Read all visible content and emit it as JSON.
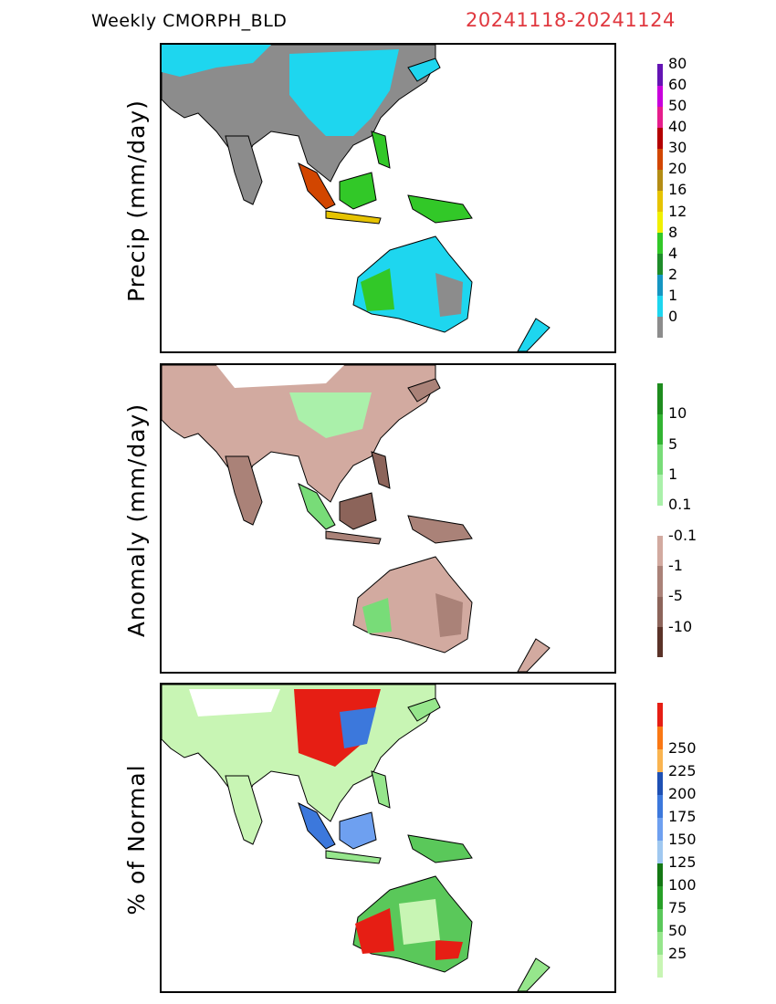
{
  "header": {
    "title": "Weekly  CMORPH_BLD",
    "date_range": "20241118-20241124"
  },
  "panels": [
    {
      "ylabel": "Precip  (mm/day)",
      "colorbar": {
        "colors": [
          "#8c8c8c",
          "#1ed6ef",
          "#1596c2",
          "#1e8c2a",
          "#32c828",
          "#f0f000",
          "#e6c300",
          "#b48c14",
          "#d24600",
          "#b40000",
          "#e61e8c",
          "#c800dc",
          "#6414b4"
        ],
        "labels": [
          "0",
          "1",
          "2",
          "4",
          "8",
          "12",
          "16",
          "20",
          "30",
          "40",
          "50",
          "60",
          "80"
        ]
      }
    },
    {
      "ylabel": "Anomaly  (mm/day)",
      "colorbar": {
        "colors": [
          "#5a3228",
          "#8c645a",
          "#aa8278",
          "#d2aaa0",
          "#ffffff",
          "#aaf0aa",
          "#78dc78",
          "#32b432",
          "#1e8c1e"
        ],
        "labels": [
          "-10",
          "-5",
          "-1",
          "-0.1",
          "0.1",
          "1",
          "5",
          "10"
        ]
      }
    },
    {
      "ylabel": "% of Normal",
      "colorbar": {
        "colors": [
          "#c8f5b4",
          "#96e68c",
          "#5ac85a",
          "#28a028",
          "#147814",
          "#a0c8f0",
          "#6ea0f0",
          "#3c78dc",
          "#1e50b4",
          "#fab450",
          "#fa7814",
          "#e61e14"
        ],
        "labels": [
          "25",
          "50",
          "75",
          "100",
          "125",
          "150",
          "175",
          "200",
          "225",
          "250"
        ]
      }
    }
  ]
}
